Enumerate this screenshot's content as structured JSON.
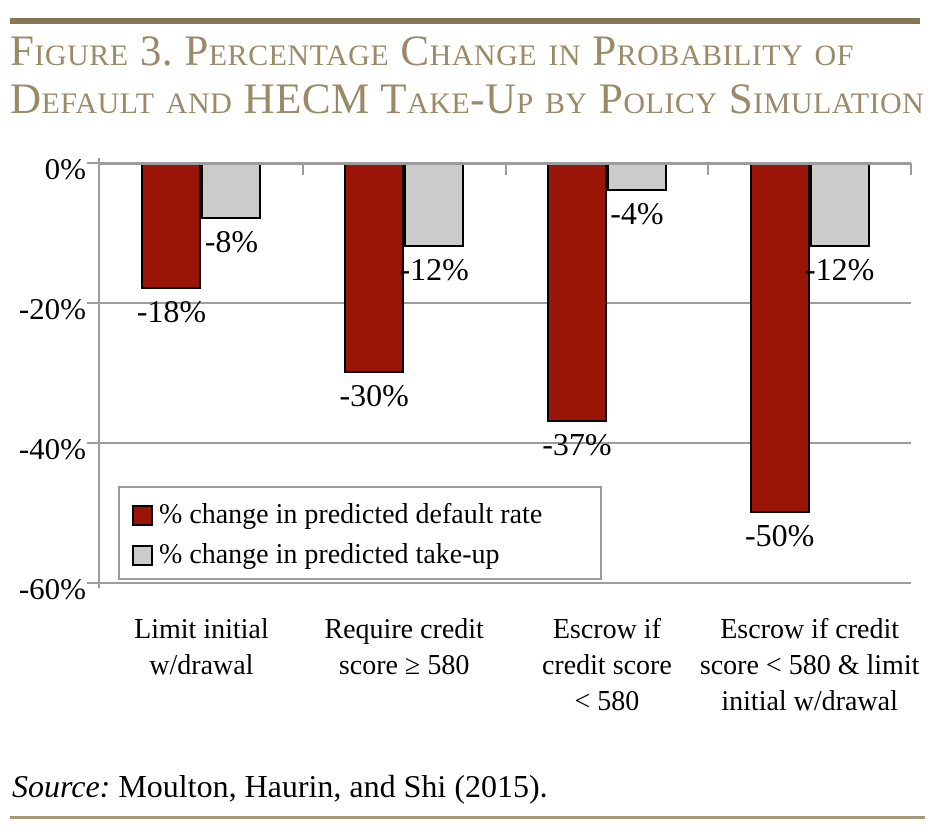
{
  "header": {
    "title_line1": "Figure 3. Percentage Change in Probability of",
    "title_line2": "Default and HECM Take-Up by Policy Simulation",
    "title_color": "#9b8a67",
    "rule_color": "#877655"
  },
  "chart_data": {
    "type": "bar",
    "title": "Figure 3. Percentage Change in Probability of Default and HECM Take-Up by Policy Simulation",
    "categories": [
      "Limit initial w/drawal",
      "Require credit score ≥ 580",
      "Escrow if credit score < 580",
      "Escrow if credit score < 580 & limit initial w/drawal"
    ],
    "categories_display": [
      "Limit initial\nw/drawal",
      "Require credit\nscore ≥ 580",
      "Escrow if\ncredit score\n< 580",
      "Escrow if credit\nscore < 580 & limit\ninitial w/drawal"
    ],
    "series": [
      {
        "name": "% change in predicted default rate",
        "color": "#9a1508",
        "values": [
          -18,
          -30,
          -37,
          -50
        ],
        "labels": [
          "-18%",
          "-30%",
          "-37%",
          "-50%"
        ]
      },
      {
        "name": "% change in predicted take-up",
        "color": "#cbcbcb",
        "values": [
          -8,
          -12,
          -4,
          -12
        ],
        "labels": [
          "-8%",
          "-12%",
          "-4%",
          "-12%"
        ]
      }
    ],
    "ylim": [
      -60,
      0
    ],
    "yticks": [
      0,
      -20,
      -40,
      -60
    ],
    "ytick_labels": [
      "0%",
      "-20%",
      "-40%",
      "-60%"
    ],
    "grid": true,
    "legend_position": "inside-bottom-left",
    "axis_color": "#9c9c9c",
    "bar_outline_color": "#000000"
  },
  "source": {
    "prefix": "Source:",
    "text": " Moulton, Haurin, and Shi (2015)."
  }
}
